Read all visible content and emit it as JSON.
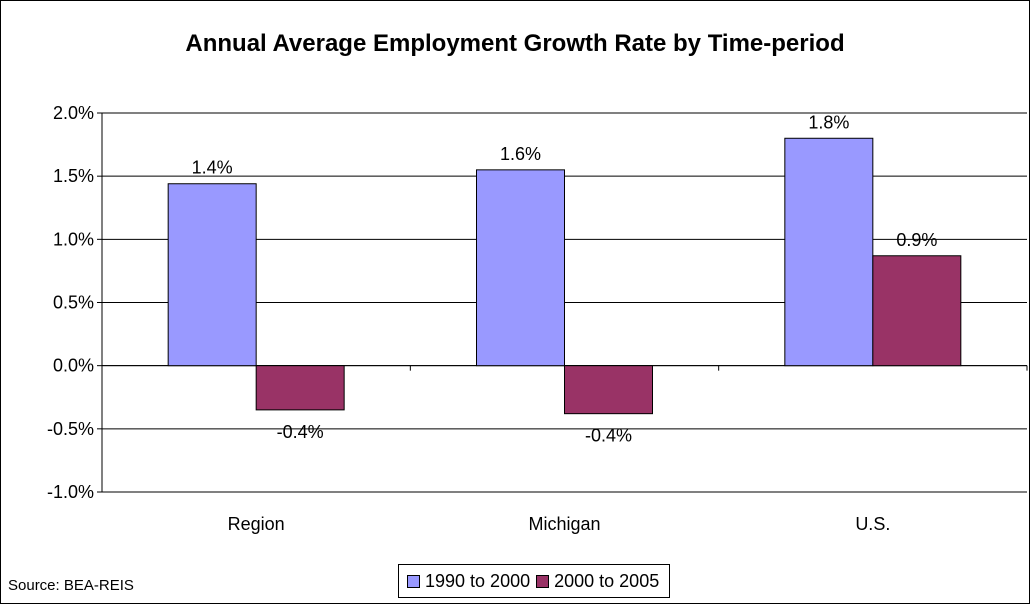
{
  "chart_data": {
    "type": "bar",
    "title": "Annual Average Employment Growth Rate by Time-period",
    "categories": [
      "Region",
      "Michigan",
      "U.S."
    ],
    "series": [
      {
        "name": "1990 to 2000",
        "values": [
          1.44,
          1.55,
          1.8
        ],
        "labels": [
          "1.4%",
          "1.6%",
          "1.8%"
        ],
        "color": "#9999FF"
      },
      {
        "name": "2000 to 2005",
        "values": [
          -0.35,
          -0.38,
          0.87
        ],
        "labels": [
          "-0.4%",
          "-0.4%",
          "0.9%"
        ],
        "color": "#993366"
      }
    ],
    "ylim": [
      -1.0,
      2.0
    ],
    "yticks": [
      "-1.0%",
      "-0.5%",
      "0.0%",
      "0.5%",
      "1.0%",
      "1.5%",
      "2.0%"
    ],
    "ytick_values": [
      -1.0,
      -0.5,
      0.0,
      0.5,
      1.0,
      1.5,
      2.0
    ],
    "grid": true,
    "legend_position": "bottom",
    "source": "Source: BEA-REIS"
  }
}
